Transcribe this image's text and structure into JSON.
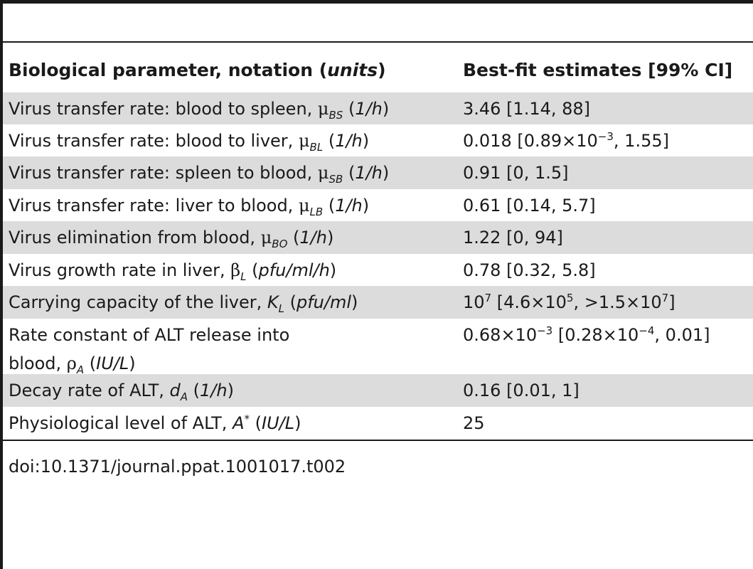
{
  "table": {
    "headers": {
      "parameter_prefix": "Biological parameter, notation (",
      "parameter_units": "units",
      "parameter_suffix": ")",
      "estimate": "Best-fit estimates [99% CI]"
    },
    "rows": [
      {
        "text": "Virus transfer rate: blood to spleen, ",
        "symbol": "μ",
        "subscript": "BS",
        "units": "1/h",
        "estimate": "3.46 [1.14, 88]"
      },
      {
        "text": "Virus transfer rate: blood to liver, ",
        "symbol": "μ",
        "subscript": "BL",
        "units": "1/h",
        "est_a": "0.018 [0.89×10",
        "est_sup_a": "−3",
        "est_b": ", 1.55]"
      },
      {
        "text": "Virus transfer rate: spleen to blood, ",
        "symbol": "μ",
        "subscript": "SB",
        "units": "1/h",
        "estimate": "0.91 [0, 1.5]"
      },
      {
        "text": "Virus transfer rate: liver to blood, ",
        "symbol": "μ",
        "subscript": "LB",
        "units": "1/h",
        "estimate": "0.61 [0.14, 5.7]"
      },
      {
        "text": "Virus elimination from blood, ",
        "symbol": "μ",
        "subscript": "BO",
        "units": "1/h",
        "estimate": "1.22 [0, 94]"
      },
      {
        "text": "Virus growth rate in liver, ",
        "symbol": "β",
        "subscript": "L",
        "units": "pfu/ml/h",
        "estimate": "0.78 [0.32, 5.8]"
      },
      {
        "text": "Carrying capacity of the liver, ",
        "symbol": "K",
        "subscript": "L",
        "units": "pfu/ml",
        "est_a": "10",
        "est_sup_a": "7",
        "est_b": " [4.6×10",
        "est_sup_b": "5",
        "est_c": ", >1.5×10",
        "est_sup_c": "7",
        "est_d": "]"
      },
      {
        "text_line1": "Rate constant of ALT release into",
        "text_line2": "blood, ",
        "symbol": "ρ",
        "subscript": "A",
        "units": "IU/L",
        "est_a": "0.68×10",
        "est_sup_a": "−3",
        "est_b": " [0.28×10",
        "est_sup_b": "−4",
        "est_c": ", 0.01]"
      },
      {
        "text": "Decay rate of ALT, ",
        "symbol": "d",
        "subscript": "A",
        "units": "1/h",
        "estimate": "0.16 [0.01, 1]"
      },
      {
        "text": "Physiological level of ALT, ",
        "symbol": "A",
        "superscript": "*",
        "units": "IU/L",
        "estimate": "25"
      }
    ]
  },
  "caption": "doi:10.1371/journal.ppat.1001017.t002"
}
